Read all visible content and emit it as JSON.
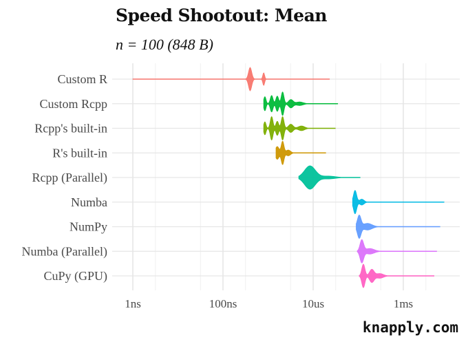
{
  "title": "Speed Shootout: Mean",
  "subtitle": "n = 100 (848 B)",
  "watermark": "knapply.com",
  "chart_data": {
    "type": "violin",
    "title": "Speed Shootout: Mean",
    "subtitle": "n = 100 (848 B)",
    "xlabel": "",
    "ylabel": "",
    "x_scale": "log10",
    "x_unit": "seconds",
    "x_ticks": [
      {
        "value": 1e-09,
        "label": "1ns"
      },
      {
        "value": 1e-07,
        "label": "100ns"
      },
      {
        "value": 1e-05,
        "label": "10us"
      },
      {
        "value": 0.001,
        "label": "1ms"
      }
    ],
    "xlim": [
      3.2e-10,
      0.01
    ],
    "grid": true,
    "legend": "none",
    "categories": [
      "Custom R",
      "Custom Rcpp",
      "Rcpp's built-in",
      "R's built-in",
      "Rcpp (Parallel)",
      "Numba",
      "NumPy",
      "Numba (Parallel)",
      "CuPy (GPU)"
    ],
    "series": [
      {
        "name": "Custom R",
        "color": "#F8766D",
        "min": 1e-09,
        "median": 4e-07,
        "max": 2.3e-05,
        "modes": [
          [
            4e-07,
            1.0,
            0.035
          ],
          [
            8e-07,
            0.55,
            0.02
          ]
        ]
      },
      {
        "name": "Custom Rcpp",
        "color": "#00BA38",
        "min": 8e-07,
        "median": 2e-06,
        "max": 3.5e-05,
        "modes": [
          [
            8.5e-07,
            0.6,
            0.025
          ],
          [
            1.2e-06,
            0.7,
            0.03
          ],
          [
            1.6e-06,
            0.65,
            0.03
          ],
          [
            2.1e-06,
            1.0,
            0.03
          ],
          [
            3.2e-06,
            0.35,
            0.05
          ],
          [
            5e-06,
            0.15,
            0.08
          ]
        ]
      },
      {
        "name": "Rcpp's built-in",
        "color": "#7CAE00",
        "min": 8e-07,
        "median": 2e-06,
        "max": 3.1e-05,
        "modes": [
          [
            8.5e-07,
            0.55,
            0.025
          ],
          [
            1.2e-06,
            1.0,
            0.03
          ],
          [
            1.6e-06,
            0.6,
            0.03
          ],
          [
            2.1e-06,
            1.0,
            0.03
          ],
          [
            3.2e-06,
            0.35,
            0.05
          ],
          [
            5.5e-06,
            0.2,
            0.07
          ]
        ]
      },
      {
        "name": "R's built-in",
        "color": "#CD9600",
        "min": 1.5e-06,
        "median": 2e-06,
        "max": 1.9e-05,
        "modes": [
          [
            1.6e-06,
            0.55,
            0.04
          ],
          [
            2.1e-06,
            1.0,
            0.03
          ],
          [
            2.8e-06,
            0.25,
            0.05
          ]
        ]
      },
      {
        "name": "Rcpp (Parallel)",
        "color": "#00C19A",
        "min": 4.8e-06,
        "median": 8.5e-06,
        "max": 0.00011,
        "modes": [
          [
            8.5e-06,
            1.0,
            0.12
          ],
          [
            2.2e-05,
            0.12,
            0.15
          ]
        ]
      },
      {
        "name": "Numba",
        "color": "#00B9E3",
        "min": 7.5e-05,
        "median": 8.5e-05,
        "max": 0.008,
        "modes": [
          [
            8.5e-05,
            1.0,
            0.035
          ],
          [
            0.00012,
            0.25,
            0.05
          ]
        ]
      },
      {
        "name": "NumPy",
        "color": "#619CFF",
        "min": 9e-05,
        "median": 0.00011,
        "max": 0.0065,
        "modes": [
          [
            0.000105,
            1.0,
            0.04
          ],
          [
            0.00016,
            0.3,
            0.1
          ]
        ]
      },
      {
        "name": "Numba (Parallel)",
        "color": "#DB72FB",
        "min": 9.5e-05,
        "median": 0.00012,
        "max": 0.0055,
        "modes": [
          [
            0.00012,
            1.0,
            0.04
          ],
          [
            0.00018,
            0.25,
            0.1
          ]
        ]
      },
      {
        "name": "CuPy (GPU)",
        "color": "#FF61C3",
        "min": 0.000105,
        "median": 0.000135,
        "max": 0.0048,
        "modes": [
          [
            0.00013,
            1.0,
            0.035
          ],
          [
            0.0002,
            0.55,
            0.05
          ],
          [
            0.0003,
            0.2,
            0.08
          ]
        ]
      }
    ]
  }
}
